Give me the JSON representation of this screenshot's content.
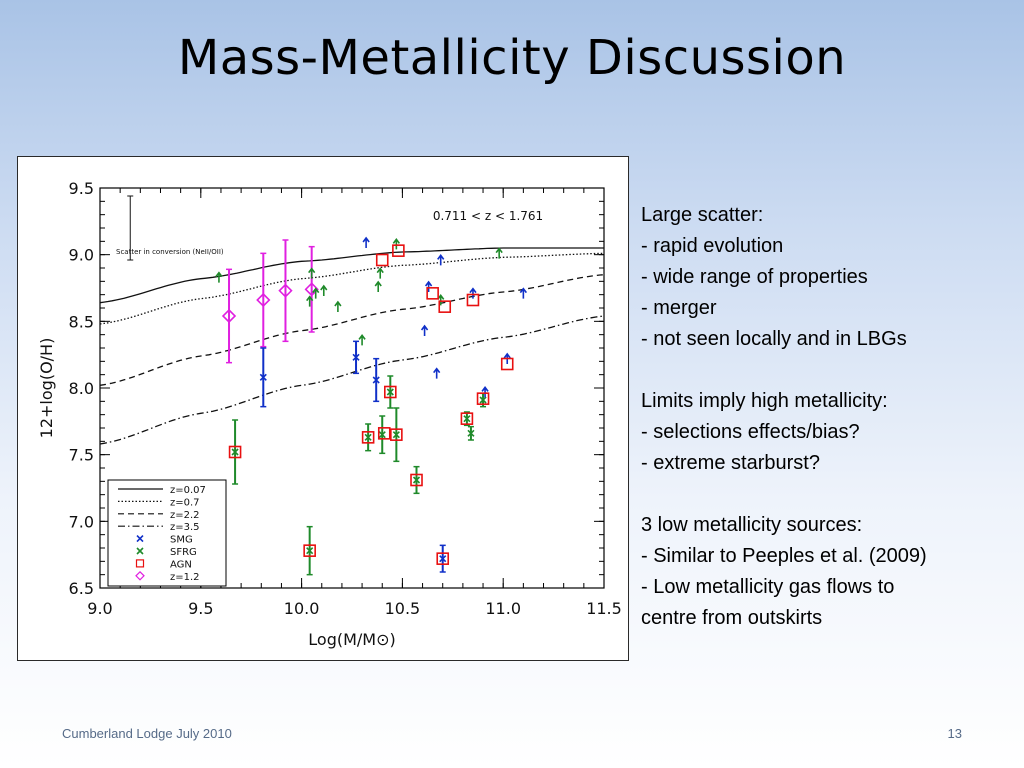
{
  "slide": {
    "title": "Mass-Metallicity Discussion",
    "footer": "Cumberland Lodge July 2010",
    "page_number": "13"
  },
  "notes": [
    {
      "heading": "Large scatter:",
      "items": [
        "- rapid evolution",
        "- wide range of properties",
        "- merger",
        "- not seen locally and in LBGs"
      ]
    },
    {
      "heading": "Limits imply high metallicity:",
      "items": [
        "- selections effects/bias?",
        "- extreme starburst?"
      ]
    },
    {
      "heading": "3 low metallicity sources:",
      "items": [
        "- Similar to Peeples et al. (2009)",
        "- Low metallicity gas flows to",
        "centre from outskirts"
      ]
    }
  ],
  "colors": {
    "smg": "#1030c8",
    "sfrg": "#1f8a2a",
    "agn": "#e81010",
    "z12": "#e020e0"
  },
  "chart_data": {
    "type": "scatter",
    "xlabel": "Log(M/M⊙)",
    "ylabel": "12+log(O/H)",
    "xlim": [
      9.0,
      11.5
    ],
    "ylim": [
      6.5,
      9.5
    ],
    "x_ticks": [
      "9.0",
      "9.5",
      "10.0",
      "10.5",
      "11.0",
      "11.5"
    ],
    "y_ticks": [
      "6.5",
      "7.0",
      "7.5",
      "8.0",
      "8.5",
      "9.0",
      "9.5"
    ],
    "annotation_range": "0.711 < z < 1.761",
    "annotation_scatter": "Scatter in conversion (NeII/OII)",
    "scatter_bar": {
      "x": 9.15,
      "y": 9.2,
      "err": 0.24
    },
    "legend_placement": "bottom-left",
    "curves": [
      {
        "name": "z=0.07",
        "style": "solid",
        "x": [
          9.0,
          9.5,
          10.0,
          10.5,
          11.0,
          11.5
        ],
        "y": [
          8.64,
          8.82,
          8.95,
          9.02,
          9.05,
          9.05
        ]
      },
      {
        "name": "z=0.7",
        "style": "dotted",
        "x": [
          9.0,
          9.5,
          10.0,
          10.5,
          11.0,
          11.5
        ],
        "y": [
          8.48,
          8.67,
          8.82,
          8.92,
          8.98,
          9.01
        ]
      },
      {
        "name": "z=2.2",
        "style": "dashed",
        "x": [
          9.0,
          9.5,
          10.0,
          10.5,
          11.0,
          11.5
        ],
        "y": [
          8.02,
          8.24,
          8.43,
          8.59,
          8.72,
          8.85
        ]
      },
      {
        "name": "z=3.5",
        "style": "dashdot",
        "x": [
          9.0,
          9.5,
          10.0,
          10.5,
          11.0,
          11.5
        ],
        "y": [
          7.58,
          7.81,
          8.02,
          8.21,
          8.38,
          8.54
        ]
      }
    ],
    "series": [
      {
        "name": "SMG",
        "marker": "x",
        "points": [
          {
            "x": 9.81,
            "y": 8.08,
            "err": 0.22
          },
          {
            "x": 10.27,
            "y": 8.23,
            "err": 0.12
          },
          {
            "x": 10.37,
            "y": 8.06,
            "err": 0.16
          },
          {
            "x": 10.7,
            "y": 6.72,
            "err": 0.1
          }
        ]
      },
      {
        "name": "SMG limits",
        "marker": "uparrow",
        "points": [
          {
            "x": 10.32,
            "y": 9.08
          },
          {
            "x": 10.61,
            "y": 8.42
          },
          {
            "x": 10.63,
            "y": 8.75
          },
          {
            "x": 10.67,
            "y": 8.1
          },
          {
            "x": 10.69,
            "y": 8.95
          },
          {
            "x": 10.85,
            "y": 8.7
          },
          {
            "x": 10.91,
            "y": 7.96
          },
          {
            "x": 11.02,
            "y": 8.21
          },
          {
            "x": 11.1,
            "y": 8.7
          }
        ]
      },
      {
        "name": "SFRG",
        "marker": "x",
        "points": [
          {
            "x": 9.67,
            "y": 7.52,
            "err": 0.24
          },
          {
            "x": 10.04,
            "y": 6.78,
            "err": 0.18
          },
          {
            "x": 10.33,
            "y": 7.63,
            "err": 0.1
          },
          {
            "x": 10.4,
            "y": 7.65,
            "err": 0.14
          },
          {
            "x": 10.44,
            "y": 7.97,
            "err": 0.12
          },
          {
            "x": 10.47,
            "y": 7.65,
            "err": 0.2
          },
          {
            "x": 10.57,
            "y": 7.31,
            "err": 0.1
          },
          {
            "x": 10.82,
            "y": 7.77,
            "err": 0.05
          },
          {
            "x": 10.84,
            "y": 7.66,
            "err": 0.05
          },
          {
            "x": 10.9,
            "y": 7.91,
            "err": 0.05
          }
        ]
      },
      {
        "name": "SFRG limits",
        "marker": "uparrow",
        "points": [
          {
            "x": 9.59,
            "y": 8.82
          },
          {
            "x": 10.04,
            "y": 8.64
          },
          {
            "x": 10.05,
            "y": 8.85
          },
          {
            "x": 10.07,
            "y": 8.7
          },
          {
            "x": 10.11,
            "y": 8.72
          },
          {
            "x": 10.18,
            "y": 8.6
          },
          {
            "x": 10.3,
            "y": 8.35
          },
          {
            "x": 10.38,
            "y": 8.75
          },
          {
            "x": 10.39,
            "y": 8.85
          },
          {
            "x": 10.47,
            "y": 9.07
          },
          {
            "x": 10.69,
            "y": 8.65
          },
          {
            "x": 10.98,
            "y": 9.0
          }
        ]
      },
      {
        "name": "AGN",
        "marker": "square",
        "points": [
          {
            "x": 9.67,
            "y": 7.52
          },
          {
            "x": 10.04,
            "y": 6.78
          },
          {
            "x": 10.33,
            "y": 7.63
          },
          {
            "x": 10.4,
            "y": 8.96
          },
          {
            "x": 10.41,
            "y": 7.66
          },
          {
            "x": 10.44,
            "y": 7.97
          },
          {
            "x": 10.47,
            "y": 7.65
          },
          {
            "x": 10.48,
            "y": 9.03
          },
          {
            "x": 10.57,
            "y": 7.31
          },
          {
            "x": 10.65,
            "y": 8.71
          },
          {
            "x": 10.7,
            "y": 6.72
          },
          {
            "x": 10.71,
            "y": 8.61
          },
          {
            "x": 10.82,
            "y": 7.77
          },
          {
            "x": 10.85,
            "y": 8.66
          },
          {
            "x": 10.9,
            "y": 7.92
          },
          {
            "x": 11.02,
            "y": 8.18
          }
        ]
      },
      {
        "name": "z=1.2",
        "marker": "diamond",
        "points": [
          {
            "x": 9.64,
            "y": 8.54,
            "err": 0.35
          },
          {
            "x": 9.81,
            "y": 8.66,
            "err": 0.35
          },
          {
            "x": 9.92,
            "y": 8.73,
            "err": 0.38
          },
          {
            "x": 10.05,
            "y": 8.74,
            "err": 0.32
          }
        ]
      }
    ],
    "legend": [
      {
        "label": "z=0.07",
        "kind": "line",
        "style": "solid"
      },
      {
        "label": "z=0.7",
        "kind": "line",
        "style": "dotted"
      },
      {
        "label": "z=2.2",
        "kind": "line",
        "style": "dashed"
      },
      {
        "label": "z=3.5",
        "kind": "line",
        "style": "dashdot"
      },
      {
        "label": "SMG",
        "kind": "marker",
        "marker": "x",
        "color": "#1030c8"
      },
      {
        "label": "SFRG",
        "kind": "marker",
        "marker": "x",
        "color": "#1f8a2a"
      },
      {
        "label": "AGN",
        "kind": "marker",
        "marker": "square",
        "color": "#e81010"
      },
      {
        "label": "z=1.2",
        "kind": "marker",
        "marker": "diamond",
        "color": "#e020e0"
      }
    ]
  }
}
